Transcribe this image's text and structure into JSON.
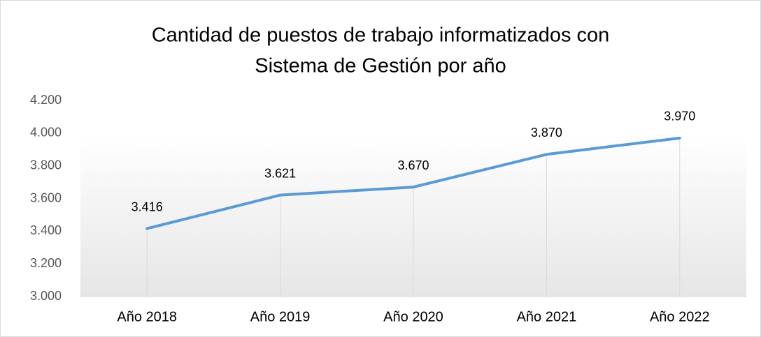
{
  "chart_data": {
    "type": "line",
    "title": [
      "Cantidad de puestos de trabajo informatizados con",
      "Sistema de Gestión por año"
    ],
    "categories": [
      "Año 2018",
      "Año 2019",
      "Año 2020",
      "Año 2021",
      "Año 2022"
    ],
    "values": [
      3416,
      3621,
      3670,
      3870,
      3970
    ],
    "value_labels": [
      "3.416",
      "3.621",
      "3.670",
      "3.870",
      "3.970"
    ],
    "color": "#5b9bd5",
    "ylim": [
      3000,
      4200
    ],
    "yticks": [
      {
        "value": 3000,
        "label": "3.000"
      },
      {
        "value": 3200,
        "label": "3.200"
      },
      {
        "value": 3400,
        "label": "3.400"
      },
      {
        "value": 3600,
        "label": "3.600"
      },
      {
        "value": 3800,
        "label": "3.800"
      },
      {
        "value": 4000,
        "label": "4.000"
      },
      {
        "value": 4200,
        "label": "4.200"
      }
    ],
    "drop_lines": true
  }
}
